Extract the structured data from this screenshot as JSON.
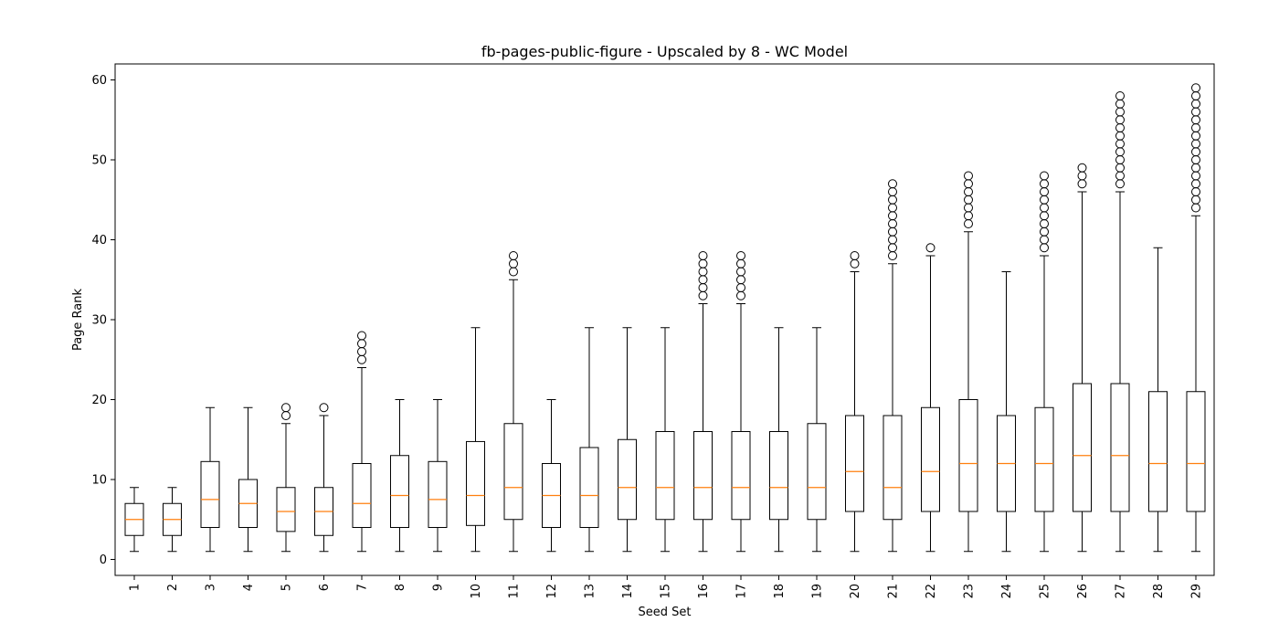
{
  "chart_data": {
    "type": "box",
    "title": "fb-pages-public-figure - Upscaled by 8 - WC Model",
    "xlabel": "Seed Set",
    "ylabel": "Page Rank",
    "ylim": [
      -2,
      62
    ],
    "yticks": [
      0,
      10,
      20,
      30,
      40,
      50,
      60
    ],
    "grid": false,
    "colors": {
      "box": "#000000",
      "median": "#ff7f0e",
      "axes": "#000000"
    },
    "boxes": [
      {
        "label": "1",
        "whislo": 1,
        "q1": 3,
        "med": 5,
        "q3": 7,
        "whishi": 9,
        "fliers": []
      },
      {
        "label": "2",
        "whislo": 1,
        "q1": 3,
        "med": 5,
        "q3": 7,
        "whishi": 9,
        "fliers": []
      },
      {
        "label": "3",
        "whislo": 1,
        "q1": 4,
        "med": 7.5,
        "q3": 12.25,
        "whishi": 19,
        "fliers": []
      },
      {
        "label": "4",
        "whislo": 1,
        "q1": 4,
        "med": 7,
        "q3": 10,
        "whishi": 19,
        "fliers": []
      },
      {
        "label": "5",
        "whislo": 1,
        "q1": 3.5,
        "med": 6,
        "q3": 9,
        "whishi": 17,
        "fliers": [
          18,
          19
        ]
      },
      {
        "label": "6",
        "whislo": 1,
        "q1": 3,
        "med": 6,
        "q3": 9,
        "whishi": 18,
        "fliers": [
          19
        ]
      },
      {
        "label": "7",
        "whislo": 1,
        "q1": 4,
        "med": 7,
        "q3": 12,
        "whishi": 24,
        "fliers": [
          25,
          26,
          27,
          28
        ]
      },
      {
        "label": "8",
        "whislo": 1,
        "q1": 4,
        "med": 8,
        "q3": 13,
        "whishi": 20,
        "fliers": []
      },
      {
        "label": "9",
        "whislo": 1,
        "q1": 4,
        "med": 7.5,
        "q3": 12.25,
        "whishi": 20,
        "fliers": []
      },
      {
        "label": "10",
        "whislo": 1,
        "q1": 4.25,
        "med": 8,
        "q3": 14.75,
        "whishi": 29,
        "fliers": []
      },
      {
        "label": "11",
        "whislo": 1,
        "q1": 5,
        "med": 9,
        "q3": 17,
        "whishi": 35,
        "fliers": [
          36,
          37,
          38
        ]
      },
      {
        "label": "12",
        "whislo": 1,
        "q1": 4,
        "med": 8,
        "q3": 12,
        "whishi": 20,
        "fliers": []
      },
      {
        "label": "13",
        "whislo": 1,
        "q1": 4,
        "med": 8,
        "q3": 14,
        "whishi": 29,
        "fliers": []
      },
      {
        "label": "14",
        "whislo": 1,
        "q1": 5,
        "med": 9,
        "q3": 15,
        "whishi": 29,
        "fliers": []
      },
      {
        "label": "15",
        "whislo": 1,
        "q1": 5,
        "med": 9,
        "q3": 16,
        "whishi": 29,
        "fliers": []
      },
      {
        "label": "16",
        "whislo": 1,
        "q1": 5,
        "med": 9,
        "q3": 16,
        "whishi": 32,
        "fliers": [
          33,
          34,
          35,
          36,
          37,
          38
        ]
      },
      {
        "label": "17",
        "whislo": 1,
        "q1": 5,
        "med": 9,
        "q3": 16,
        "whishi": 32,
        "fliers": [
          33,
          34,
          35,
          36,
          37,
          38
        ]
      },
      {
        "label": "18",
        "whislo": 1,
        "q1": 5,
        "med": 9,
        "q3": 16,
        "whishi": 29,
        "fliers": []
      },
      {
        "label": "19",
        "whislo": 1,
        "q1": 5,
        "med": 9,
        "q3": 17,
        "whishi": 29,
        "fliers": []
      },
      {
        "label": "20",
        "whislo": 1,
        "q1": 6,
        "med": 11,
        "q3": 18,
        "whishi": 36,
        "fliers": [
          37,
          38
        ]
      },
      {
        "label": "21",
        "whislo": 1,
        "q1": 5,
        "med": 9,
        "q3": 18,
        "whishi": 37,
        "fliers": [
          38,
          39,
          40,
          41,
          42,
          43,
          44,
          45,
          46,
          47
        ]
      },
      {
        "label": "22",
        "whislo": 1,
        "q1": 6,
        "med": 11,
        "q3": 19,
        "whishi": 38,
        "fliers": [
          39
        ]
      },
      {
        "label": "23",
        "whislo": 1,
        "q1": 6,
        "med": 12,
        "q3": 20,
        "whishi": 41,
        "fliers": [
          42,
          43,
          44,
          45,
          46,
          47,
          48
        ]
      },
      {
        "label": "24",
        "whislo": 1,
        "q1": 6,
        "med": 12,
        "q3": 18,
        "whishi": 36,
        "fliers": []
      },
      {
        "label": "25",
        "whislo": 1,
        "q1": 6,
        "med": 12,
        "q3": 19,
        "whishi": 38,
        "fliers": [
          39,
          40,
          41,
          42,
          43,
          44,
          45,
          46,
          47,
          48
        ]
      },
      {
        "label": "26",
        "whislo": 1,
        "q1": 6,
        "med": 13,
        "q3": 22,
        "whishi": 46,
        "fliers": [
          47,
          48,
          49
        ]
      },
      {
        "label": "27",
        "whislo": 1,
        "q1": 6,
        "med": 13,
        "q3": 22,
        "whishi": 46,
        "fliers": [
          47,
          48,
          49,
          50,
          51,
          52,
          53,
          54,
          55,
          56,
          57,
          58
        ]
      },
      {
        "label": "28",
        "whislo": 1,
        "q1": 6,
        "med": 12,
        "q3": 21,
        "whishi": 39,
        "fliers": []
      },
      {
        "label": "29",
        "whislo": 1,
        "q1": 6,
        "med": 12,
        "q3": 21,
        "whishi": 43,
        "fliers": [
          44,
          45,
          46,
          47,
          48,
          49,
          50,
          51,
          52,
          53,
          54,
          55,
          56,
          57,
          58,
          59
        ]
      }
    ]
  }
}
